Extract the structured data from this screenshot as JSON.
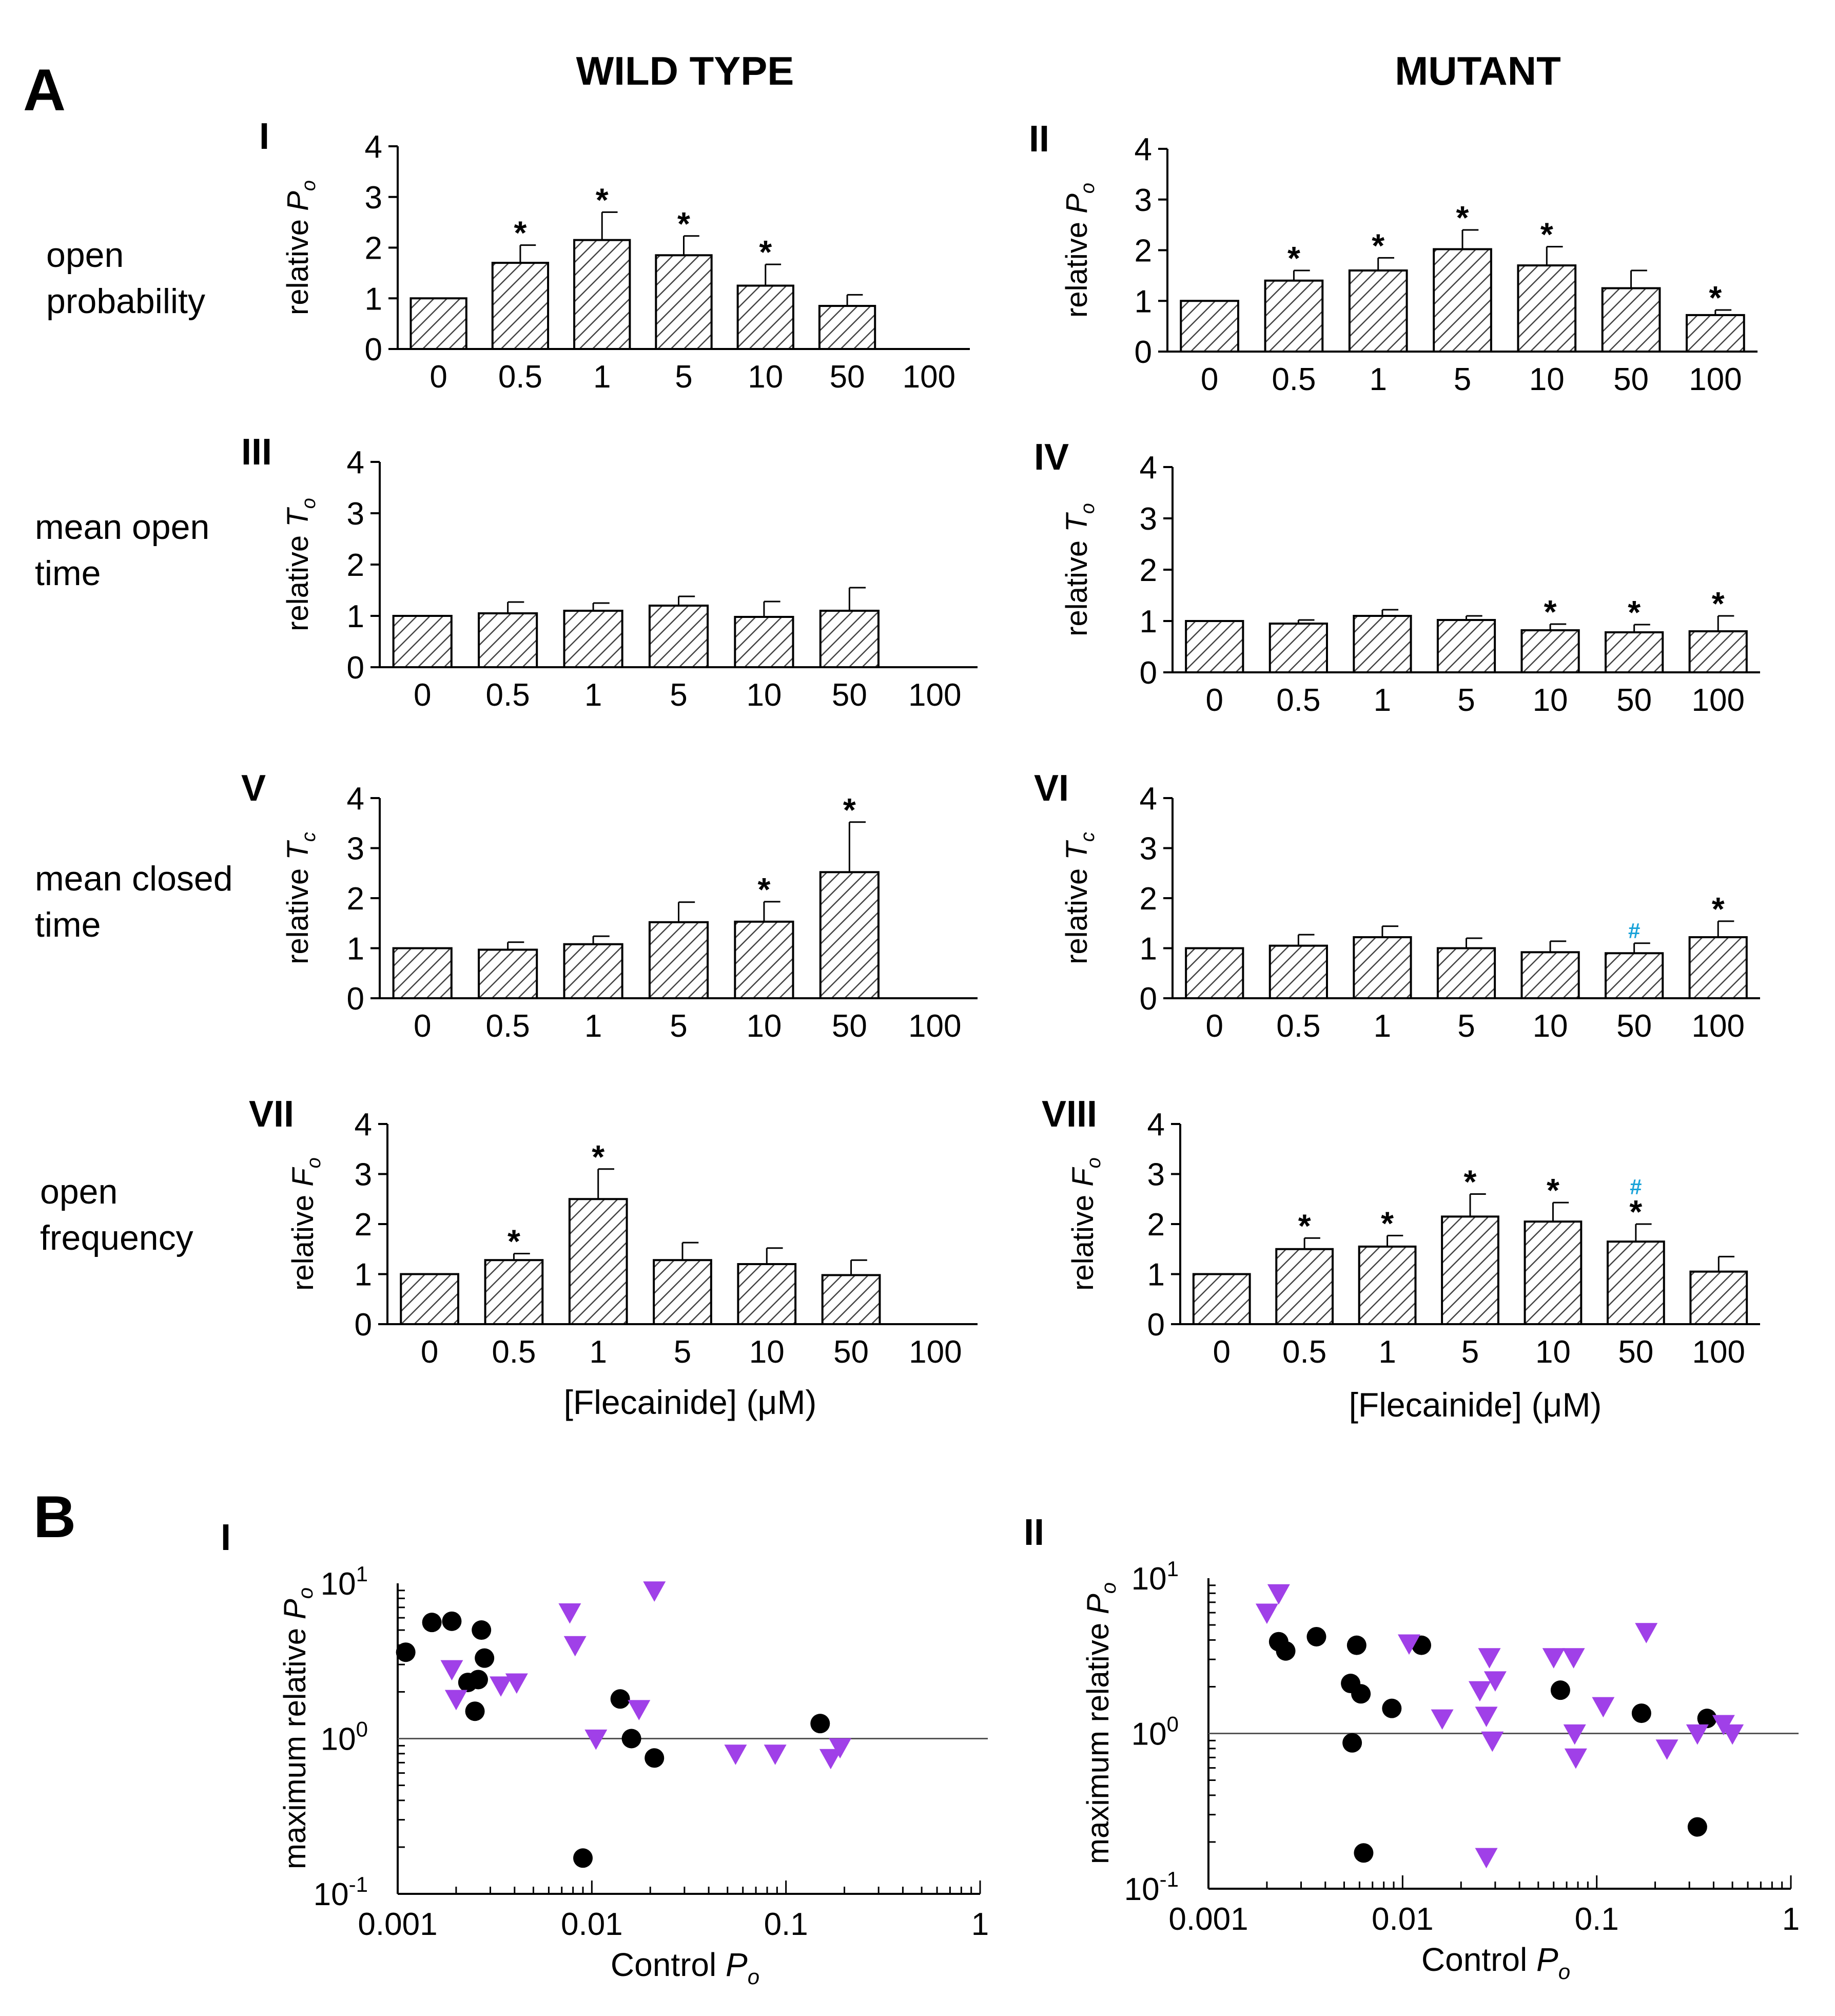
{
  "figure": {
    "panel_a_label": "A",
    "panel_b_label": "B",
    "column_titles": [
      "WILD TYPE",
      "MUTANT"
    ],
    "row_labels": [
      [
        "open",
        "probability"
      ],
      [
        "mean open",
        "time"
      ],
      [
        "mean closed",
        "time"
      ],
      [
        "open",
        "frequency"
      ]
    ],
    "colors": {
      "wild_type_bars": "#ffffff",
      "hatch": "#444444",
      "significance_hash": "#1aa3d9",
      "scatter_circle": "#000000",
      "scatter_triangle": "#a040e8"
    },
    "xlabel_a": "[Flecainide] (μM)",
    "xlabel_b": "Control P",
    "xlabel_b_sub": "o",
    "ylabel_b": "maximum relative P",
    "ylabel_b_sub": "o"
  },
  "chart_data": [
    {
      "id": "I",
      "type": "bar",
      "panel": "I",
      "categories": [
        "0",
        "0.5",
        "1",
        "5",
        "10",
        "50",
        "100"
      ],
      "values": [
        1.0,
        1.7,
        2.15,
        1.85,
        1.25,
        0.85,
        null
      ],
      "errors": [
        0,
        0.35,
        0.55,
        0.38,
        0.42,
        0.22,
        null
      ],
      "significance": [
        "",
        "*",
        "*",
        "*",
        "*",
        "",
        ""
      ],
      "ylabel": "relative P",
      "ylabel_sub": "o",
      "yticks": [
        "0",
        "1",
        "2",
        "3",
        "4"
      ],
      "ylim": [
        0,
        4
      ]
    },
    {
      "id": "II",
      "type": "bar",
      "panel": "II",
      "categories": [
        "0",
        "0.5",
        "1",
        "5",
        "10",
        "50",
        "100"
      ],
      "values": [
        1.0,
        1.4,
        1.6,
        2.02,
        1.7,
        1.25,
        0.72
      ],
      "errors": [
        0,
        0.2,
        0.25,
        0.38,
        0.37,
        0.35,
        0.1
      ],
      "significance": [
        "",
        "*",
        "*",
        "*",
        "*",
        "",
        "*"
      ],
      "ylabel": "relative P",
      "ylabel_sub": "o",
      "yticks": [
        "0",
        "1",
        "2",
        "3",
        "4"
      ],
      "ylim": [
        0,
        4
      ]
    },
    {
      "id": "III",
      "type": "bar",
      "panel": "III",
      "categories": [
        "0",
        "0.5",
        "1",
        "5",
        "10",
        "50",
        "100"
      ],
      "values": [
        1.0,
        1.05,
        1.1,
        1.2,
        0.98,
        1.1,
        null
      ],
      "errors": [
        0,
        0.22,
        0.15,
        0.18,
        0.3,
        0.45,
        null
      ],
      "significance": [
        "",
        "",
        "",
        "",
        "",
        "",
        ""
      ],
      "ylabel": "relative T",
      "ylabel_sub": "o",
      "yticks": [
        "0",
        "1",
        "2",
        "3",
        "4"
      ],
      "ylim": [
        0,
        4
      ]
    },
    {
      "id": "IV",
      "type": "bar",
      "panel": "IV",
      "categories": [
        "0",
        "0.5",
        "1",
        "5",
        "10",
        "50",
        "100"
      ],
      "values": [
        1.0,
        0.95,
        1.1,
        1.02,
        0.82,
        0.78,
        0.8
      ],
      "errors": [
        0,
        0.07,
        0.12,
        0.08,
        0.12,
        0.15,
        0.3
      ],
      "significance": [
        "",
        "",
        "",
        "",
        "*",
        "*",
        "*"
      ],
      "ylabel": "relative T",
      "ylabel_sub": "o",
      "yticks": [
        "0",
        "1",
        "2",
        "3",
        "4"
      ],
      "ylim": [
        0,
        4
      ]
    },
    {
      "id": "V",
      "type": "bar",
      "panel": "V",
      "categories": [
        "0",
        "0.5",
        "1",
        "5",
        "10",
        "50",
        "100"
      ],
      "values": [
        1.0,
        0.97,
        1.08,
        1.52,
        1.53,
        2.52,
        null
      ],
      "errors": [
        0,
        0.15,
        0.16,
        0.4,
        0.4,
        1.0,
        null
      ],
      "significance": [
        "",
        "",
        "",
        "",
        "*",
        "*",
        ""
      ],
      "ylabel": "relative T",
      "ylabel_sub": "c",
      "yticks": [
        "0",
        "1",
        "2",
        "3",
        "4"
      ],
      "ylim": [
        0,
        4
      ]
    },
    {
      "id": "VI",
      "type": "bar",
      "panel": "VI",
      "categories": [
        "0",
        "0.5",
        "1",
        "5",
        "10",
        "50",
        "100"
      ],
      "values": [
        1.0,
        1.05,
        1.22,
        1.0,
        0.92,
        0.9,
        1.22
      ],
      "errors": [
        0,
        0.22,
        0.22,
        0.2,
        0.22,
        0.2,
        0.32
      ],
      "significance": [
        "",
        "",
        "",
        "",
        "",
        "#",
        "*"
      ],
      "ylabel": "relative T",
      "ylabel_sub": "c",
      "yticks": [
        "0",
        "1",
        "2",
        "3",
        "4"
      ],
      "ylim": [
        0,
        4
      ]
    },
    {
      "id": "VII",
      "type": "bar",
      "panel": "VII",
      "categories": [
        "0",
        "0.5",
        "1",
        "5",
        "10",
        "50",
        "100"
      ],
      "values": [
        1.0,
        1.28,
        2.5,
        1.28,
        1.2,
        0.98,
        null
      ],
      "errors": [
        0,
        0.13,
        0.6,
        0.35,
        0.32,
        0.3,
        null
      ],
      "significance": [
        "",
        "*",
        "*",
        "",
        "",
        "",
        ""
      ],
      "ylabel": "relative F",
      "ylabel_sub": "o",
      "yticks": [
        "0",
        "1",
        "2",
        "3",
        "4"
      ],
      "ylim": [
        0,
        4
      ]
    },
    {
      "id": "VIII",
      "type": "bar",
      "panel": "VIII",
      "categories": [
        "0",
        "0.5",
        "1",
        "5",
        "10",
        "50",
        "100"
      ],
      "values": [
        1.0,
        1.5,
        1.55,
        2.15,
        2.05,
        1.65,
        1.05
      ],
      "errors": [
        0,
        0.22,
        0.22,
        0.45,
        0.38,
        0.35,
        0.3
      ],
      "significance": [
        "",
        "*",
        "*",
        "*",
        "*",
        "#*",
        ""
      ],
      "ylabel": "relative F",
      "ylabel_sub": "o",
      "yticks": [
        "0",
        "1",
        "2",
        "3",
        "4"
      ],
      "ylim": [
        0,
        4
      ]
    },
    {
      "id": "BI",
      "type": "scatter",
      "panel": "I",
      "xscale": "log",
      "yscale": "log",
      "xlim": [
        0.001,
        1
      ],
      "ylim": [
        0.1,
        10
      ],
      "xticks": [
        "0.001",
        "0.01",
        "0.1",
        "1"
      ],
      "yticks": [
        {
          "base": "10",
          "exp": "1"
        },
        {
          "base": "10",
          "exp": "0"
        },
        {
          "base": "10",
          "exp": "-1"
        }
      ],
      "reference_line_y": 1,
      "series": [
        {
          "marker": "circle",
          "points": [
            [
              0.0011,
              3.6
            ],
            [
              0.0015,
              5.6
            ],
            [
              0.0019,
              5.7
            ],
            [
              0.0023,
              2.3
            ],
            [
              0.0025,
              1.5
            ],
            [
              0.0026,
              2.4
            ],
            [
              0.0027,
              5.0
            ],
            [
              0.0028,
              3.3
            ],
            [
              0.009,
              0.17
            ],
            [
              0.014,
              1.8
            ],
            [
              0.016,
              1.0
            ],
            [
              0.021,
              0.75
            ],
            [
              0.15,
              1.25
            ]
          ]
        },
        {
          "marker": "triangle-down",
          "points": [
            [
              0.0019,
              2.8
            ],
            [
              0.002,
              1.8
            ],
            [
              0.0034,
              2.2
            ],
            [
              0.0041,
              2.3
            ],
            [
              0.0077,
              6.5
            ],
            [
              0.0082,
              4.0
            ],
            [
              0.0105,
              1.0
            ],
            [
              0.0175,
              1.55
            ],
            [
              0.021,
              9.0
            ],
            [
              0.055,
              0.8
            ],
            [
              0.088,
              0.8
            ],
            [
              0.17,
              0.75
            ],
            [
              0.19,
              0.88
            ]
          ]
        }
      ]
    },
    {
      "id": "BII",
      "type": "scatter",
      "panel": "II",
      "xscale": "log",
      "yscale": "log",
      "xlim": [
        0.001,
        1
      ],
      "ylim": [
        0.1,
        10
      ],
      "xticks": [
        "0.001",
        "0.01",
        "0.1",
        "1"
      ],
      "yticks": [
        {
          "base": "10",
          "exp": "1"
        },
        {
          "base": "10",
          "exp": "0"
        },
        {
          "base": "10",
          "exp": "-1"
        }
      ],
      "reference_line_y": 1,
      "series": [
        {
          "marker": "circle",
          "points": [
            [
              0.0023,
              3.9
            ],
            [
              0.0025,
              3.4
            ],
            [
              0.0036,
              4.2
            ],
            [
              0.0054,
              2.1
            ],
            [
              0.0055,
              0.87
            ],
            [
              0.0058,
              3.7
            ],
            [
              0.0061,
              1.8
            ],
            [
              0.0063,
              0.17
            ],
            [
              0.0088,
              1.45
            ],
            [
              0.0125,
              3.7
            ],
            [
              0.065,
              1.9
            ],
            [
              0.17,
              1.35
            ],
            [
              0.33,
              0.25
            ],
            [
              0.37,
              1.25
            ]
          ]
        },
        {
          "marker": "triangle-down",
          "points": [
            [
              0.002,
              6.0
            ],
            [
              0.0023,
              8.0
            ],
            [
              0.0108,
              3.8
            ],
            [
              0.016,
              1.25
            ],
            [
              0.025,
              1.9
            ],
            [
              0.027,
              0.16
            ],
            [
              0.027,
              1.3
            ],
            [
              0.028,
              3.1
            ],
            [
              0.029,
              0.9
            ],
            [
              0.03,
              2.2
            ],
            [
              0.06,
              3.1
            ],
            [
              0.076,
              3.1
            ],
            [
              0.077,
              1.0
            ],
            [
              0.078,
              0.7
            ],
            [
              0.108,
              1.5
            ],
            [
              0.18,
              4.5
            ],
            [
              0.23,
              0.8
            ],
            [
              0.33,
              1.0
            ],
            [
              0.45,
              1.15
            ],
            [
              0.5,
              1.0
            ]
          ]
        }
      ]
    }
  ]
}
